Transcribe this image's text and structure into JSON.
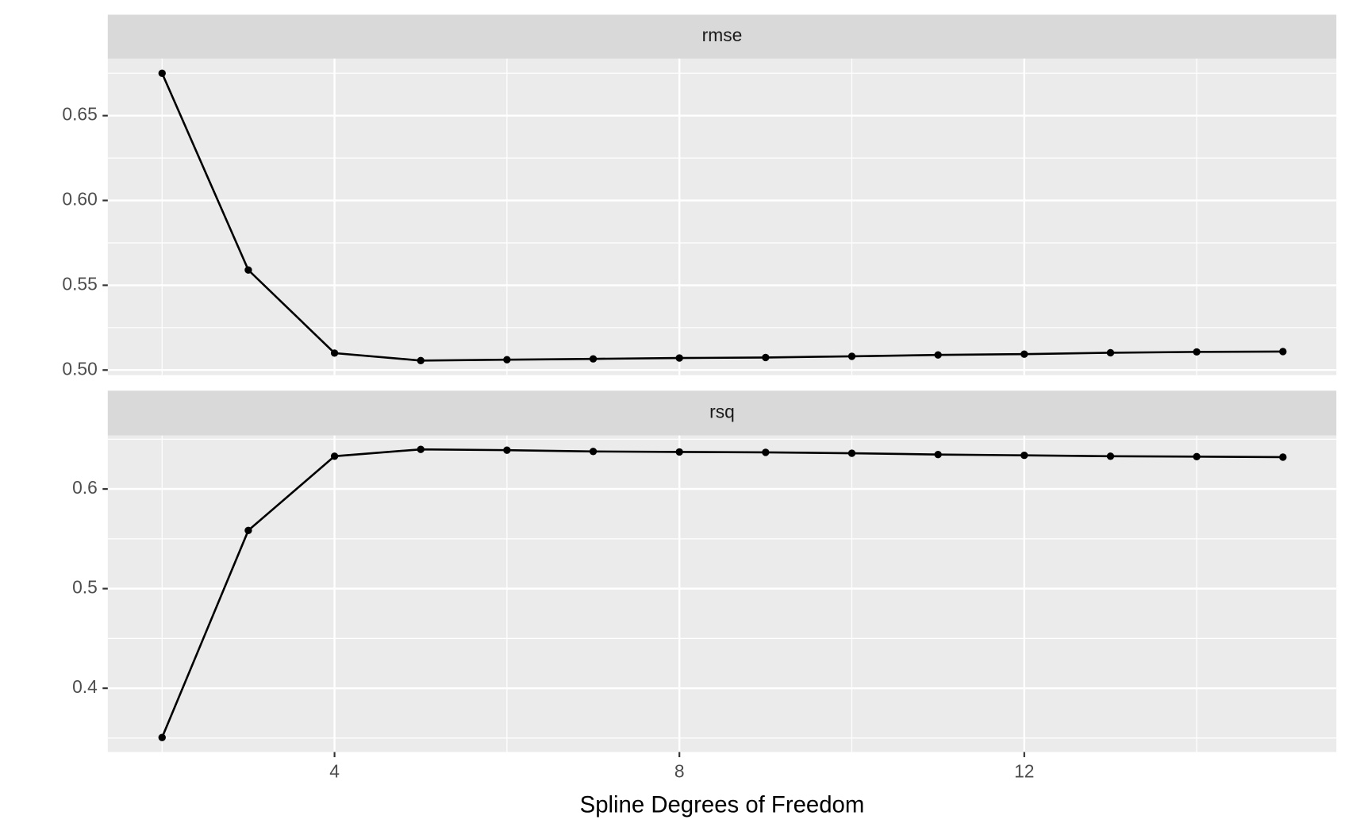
{
  "chart_data": [
    {
      "type": "line",
      "title": "rmse",
      "x": [
        2,
        3,
        4,
        5,
        6,
        7,
        8,
        9,
        10,
        11,
        12,
        13,
        14,
        15
      ],
      "values": [
        0.675,
        0.559,
        0.51,
        0.5056,
        0.5061,
        0.5066,
        0.5071,
        0.5074,
        0.5081,
        0.5089,
        0.5094,
        0.5102,
        0.5107,
        0.5109
      ],
      "color": "#000000",
      "xlim": [
        1.37,
        15.62
      ],
      "xticks": [
        4,
        8,
        12
      ],
      "ylim": [
        0.497,
        0.6836
      ],
      "yticks": [
        {
          "value": 0.5,
          "label": "0.50"
        },
        0.55,
        {
          "value": 0.6,
          "label": "0.60"
        },
        0.65
      ],
      "grid": true
    },
    {
      "type": "line",
      "title": "rsq",
      "x": [
        2,
        3,
        4,
        5,
        6,
        7,
        8,
        9,
        10,
        11,
        12,
        13,
        14,
        15
      ],
      "values": [
        0.3506,
        0.5584,
        0.6329,
        0.6398,
        0.639,
        0.6377,
        0.6372,
        0.6368,
        0.6359,
        0.6346,
        0.6338,
        0.6329,
        0.6325,
        0.632
      ],
      "color": "#000000",
      "xlim": [
        1.37,
        15.62
      ],
      "xticks": [
        4,
        8,
        12
      ],
      "ylim": [
        0.336,
        0.6537
      ],
      "yticks": [
        0.4,
        0.5,
        0.6
      ],
      "xlabel": "Spline Degrees of Freedom",
      "grid": true
    }
  ]
}
